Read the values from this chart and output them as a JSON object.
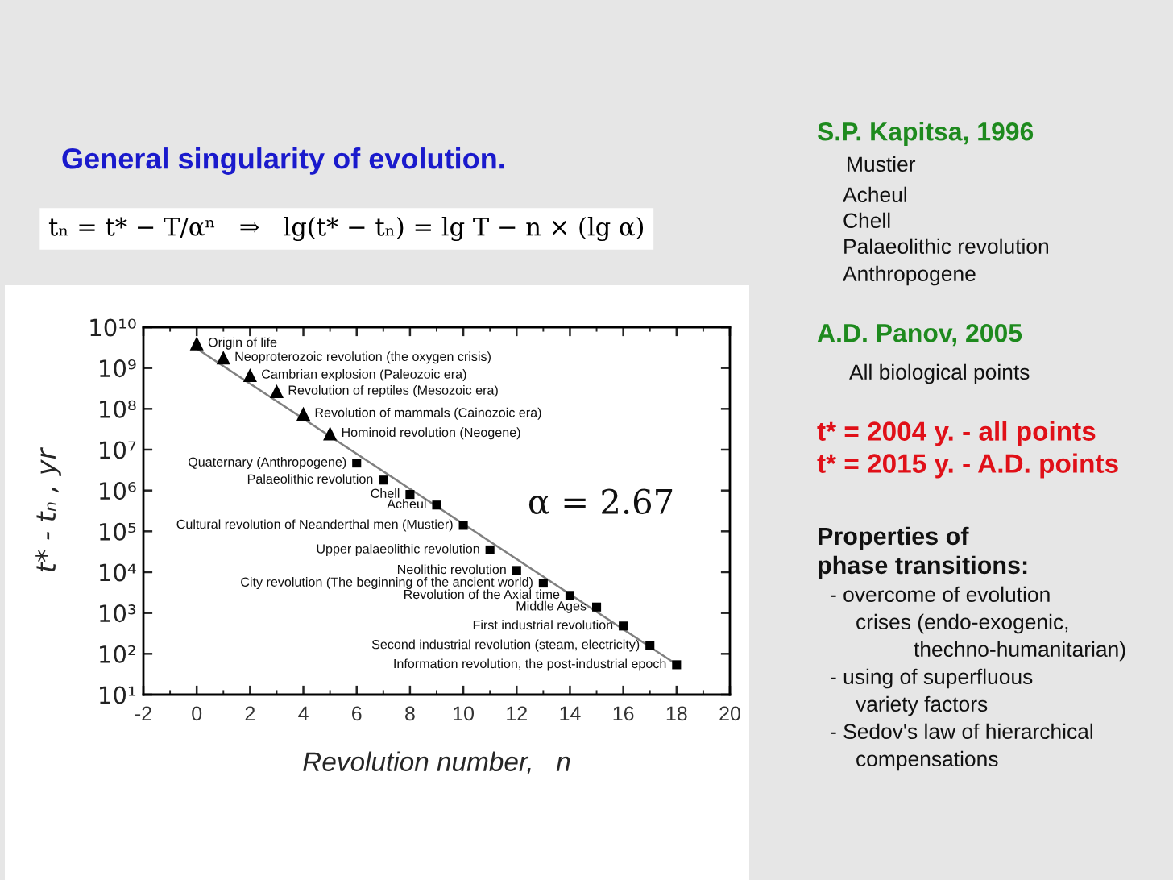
{
  "chart_data": {
    "type": "scatter",
    "title": "General singularity of evolution.",
    "subtitle": "tₙ = t* − T/αⁿ   ⇒   lg(t* − tₙ) = lg T − n × (lg α)",
    "xlabel": "Revolution number,   n",
    "ylabel": "t* - tₙ , yr",
    "series": [
      {
        "marker": "triangle",
        "color": "#000000",
        "x": [
          0,
          1,
          2,
          3,
          4,
          5
        ],
        "values": [
          4000000000.0,
          1800000000.0,
          670000000.0,
          270000000.0,
          76000000.0,
          25000000.0
        ]
      },
      {
        "marker": "square",
        "color": "#000000",
        "x": [
          6,
          7,
          8,
          9,
          10,
          11,
          12,
          13,
          14,
          15,
          16,
          17,
          18
        ],
        "values": [
          4700000.0,
          1800000.0,
          800000.0,
          440000.0,
          140000.0,
          35000.0,
          11000.0,
          5400.0,
          2700.0,
          1400.0,
          480,
          160,
          54
        ]
      },
      {
        "type": "line",
        "color": "#808080",
        "x": [
          0,
          18
        ],
        "values": [
          3000000000.0,
          55
        ]
      }
    ],
    "xlim": [
      -2,
      20
    ],
    "xticks": [
      -2,
      0,
      2,
      4,
      6,
      8,
      10,
      12,
      14,
      16,
      18,
      20
    ],
    "ylim": [
      10,
      10000000000.0
    ],
    "yticks": [
      {
        "value": 10,
        "label": "10¹"
      },
      {
        "value": 100,
        "label": "10²"
      },
      {
        "value": 1000,
        "label": "10³"
      },
      {
        "value": 10000.0,
        "label": "10⁴"
      },
      {
        "value": 100000.0,
        "label": "10⁵"
      },
      {
        "value": 1000000.0,
        "label": "10⁶"
      },
      {
        "value": 10000000.0,
        "label": "10⁷"
      },
      {
        "value": 100000000.0,
        "label": "10⁸"
      },
      {
        "value": 1000000000.0,
        "label": "10⁹"
      },
      {
        "value": 10000000000.0,
        "label": "10¹⁰"
      }
    ],
    "log": "y",
    "annotations": [
      {
        "text": "Origin of life",
        "x": 0,
        "y": 4000000000.0
      },
      {
        "text": "Neoproterozoic revolution (the oxygen crisis)",
        "x": 1,
        "y": 1800000000.0
      },
      {
        "text": "Cambrian explosion (Paleozoic era)",
        "x": 2,
        "y": 670000000.0
      },
      {
        "text": "Revolution of reptiles (Mesozoic era)",
        "x": 3,
        "y": 270000000.0
      },
      {
        "text": "Revolution of mammals (Cainozoic era)",
        "x": 4,
        "y": 76000000.0
      },
      {
        "text": "Hominoid revolution (Neogene)",
        "x": 5,
        "y": 25000000.0
      },
      {
        "text": "Quaternary (Anthropogene)",
        "x": 6,
        "y": 4700000.0
      },
      {
        "text": "Palaeolithic revolution",
        "x": 7,
        "y": 1800000.0
      },
      {
        "text": "Chell",
        "x": 8,
        "y": 800000.0
      },
      {
        "text": "Acheul",
        "x": 9,
        "y": 440000.0
      },
      {
        "text": "Cultural revolution of Neanderthal men (Mustier)",
        "x": 10,
        "y": 140000.0
      },
      {
        "text": "Upper palaeolithic revolution",
        "x": 11,
        "y": 35000.0
      },
      {
        "text": "Neolithic revolution",
        "x": 12,
        "y": 11000.0
      },
      {
        "text": "City revolution (The beginning of the ancient world)",
        "x": 13,
        "y": 5400.0
      },
      {
        "text": "Revolution of the Axial time",
        "x": 14,
        "y": 2700.0
      },
      {
        "text": "Middle Ages",
        "x": 15,
        "y": 1400.0
      },
      {
        "text": "First industrial revolution",
        "x": 16,
        "y": 480
      },
      {
        "text": "Second industrial revolution (steam, electricity)",
        "x": 17,
        "y": 160
      },
      {
        "text": "Information revolution, the post-industrial epoch",
        "x": 18,
        "y": 54
      },
      "α = 2.67",
      "S.P. Kapitsa, 1996",
      "Mustier",
      "Acheul",
      "Chell",
      "Palaeolithic revolution",
      "Anthropogene",
      "A.D. Panov, 2005",
      "All biological points",
      "t* = 2004 y. - all points",
      "t* = 2015 y. - A.D. points",
      "Properties of",
      "phase transitions:",
      "- overcome of evolution",
      "crises (endo-exogenic,",
      "thechno-humanitarian)",
      "- using of superfluous",
      "variety factors",
      "- Sedov's law of hierarchical",
      "compensations"
    ]
  }
}
